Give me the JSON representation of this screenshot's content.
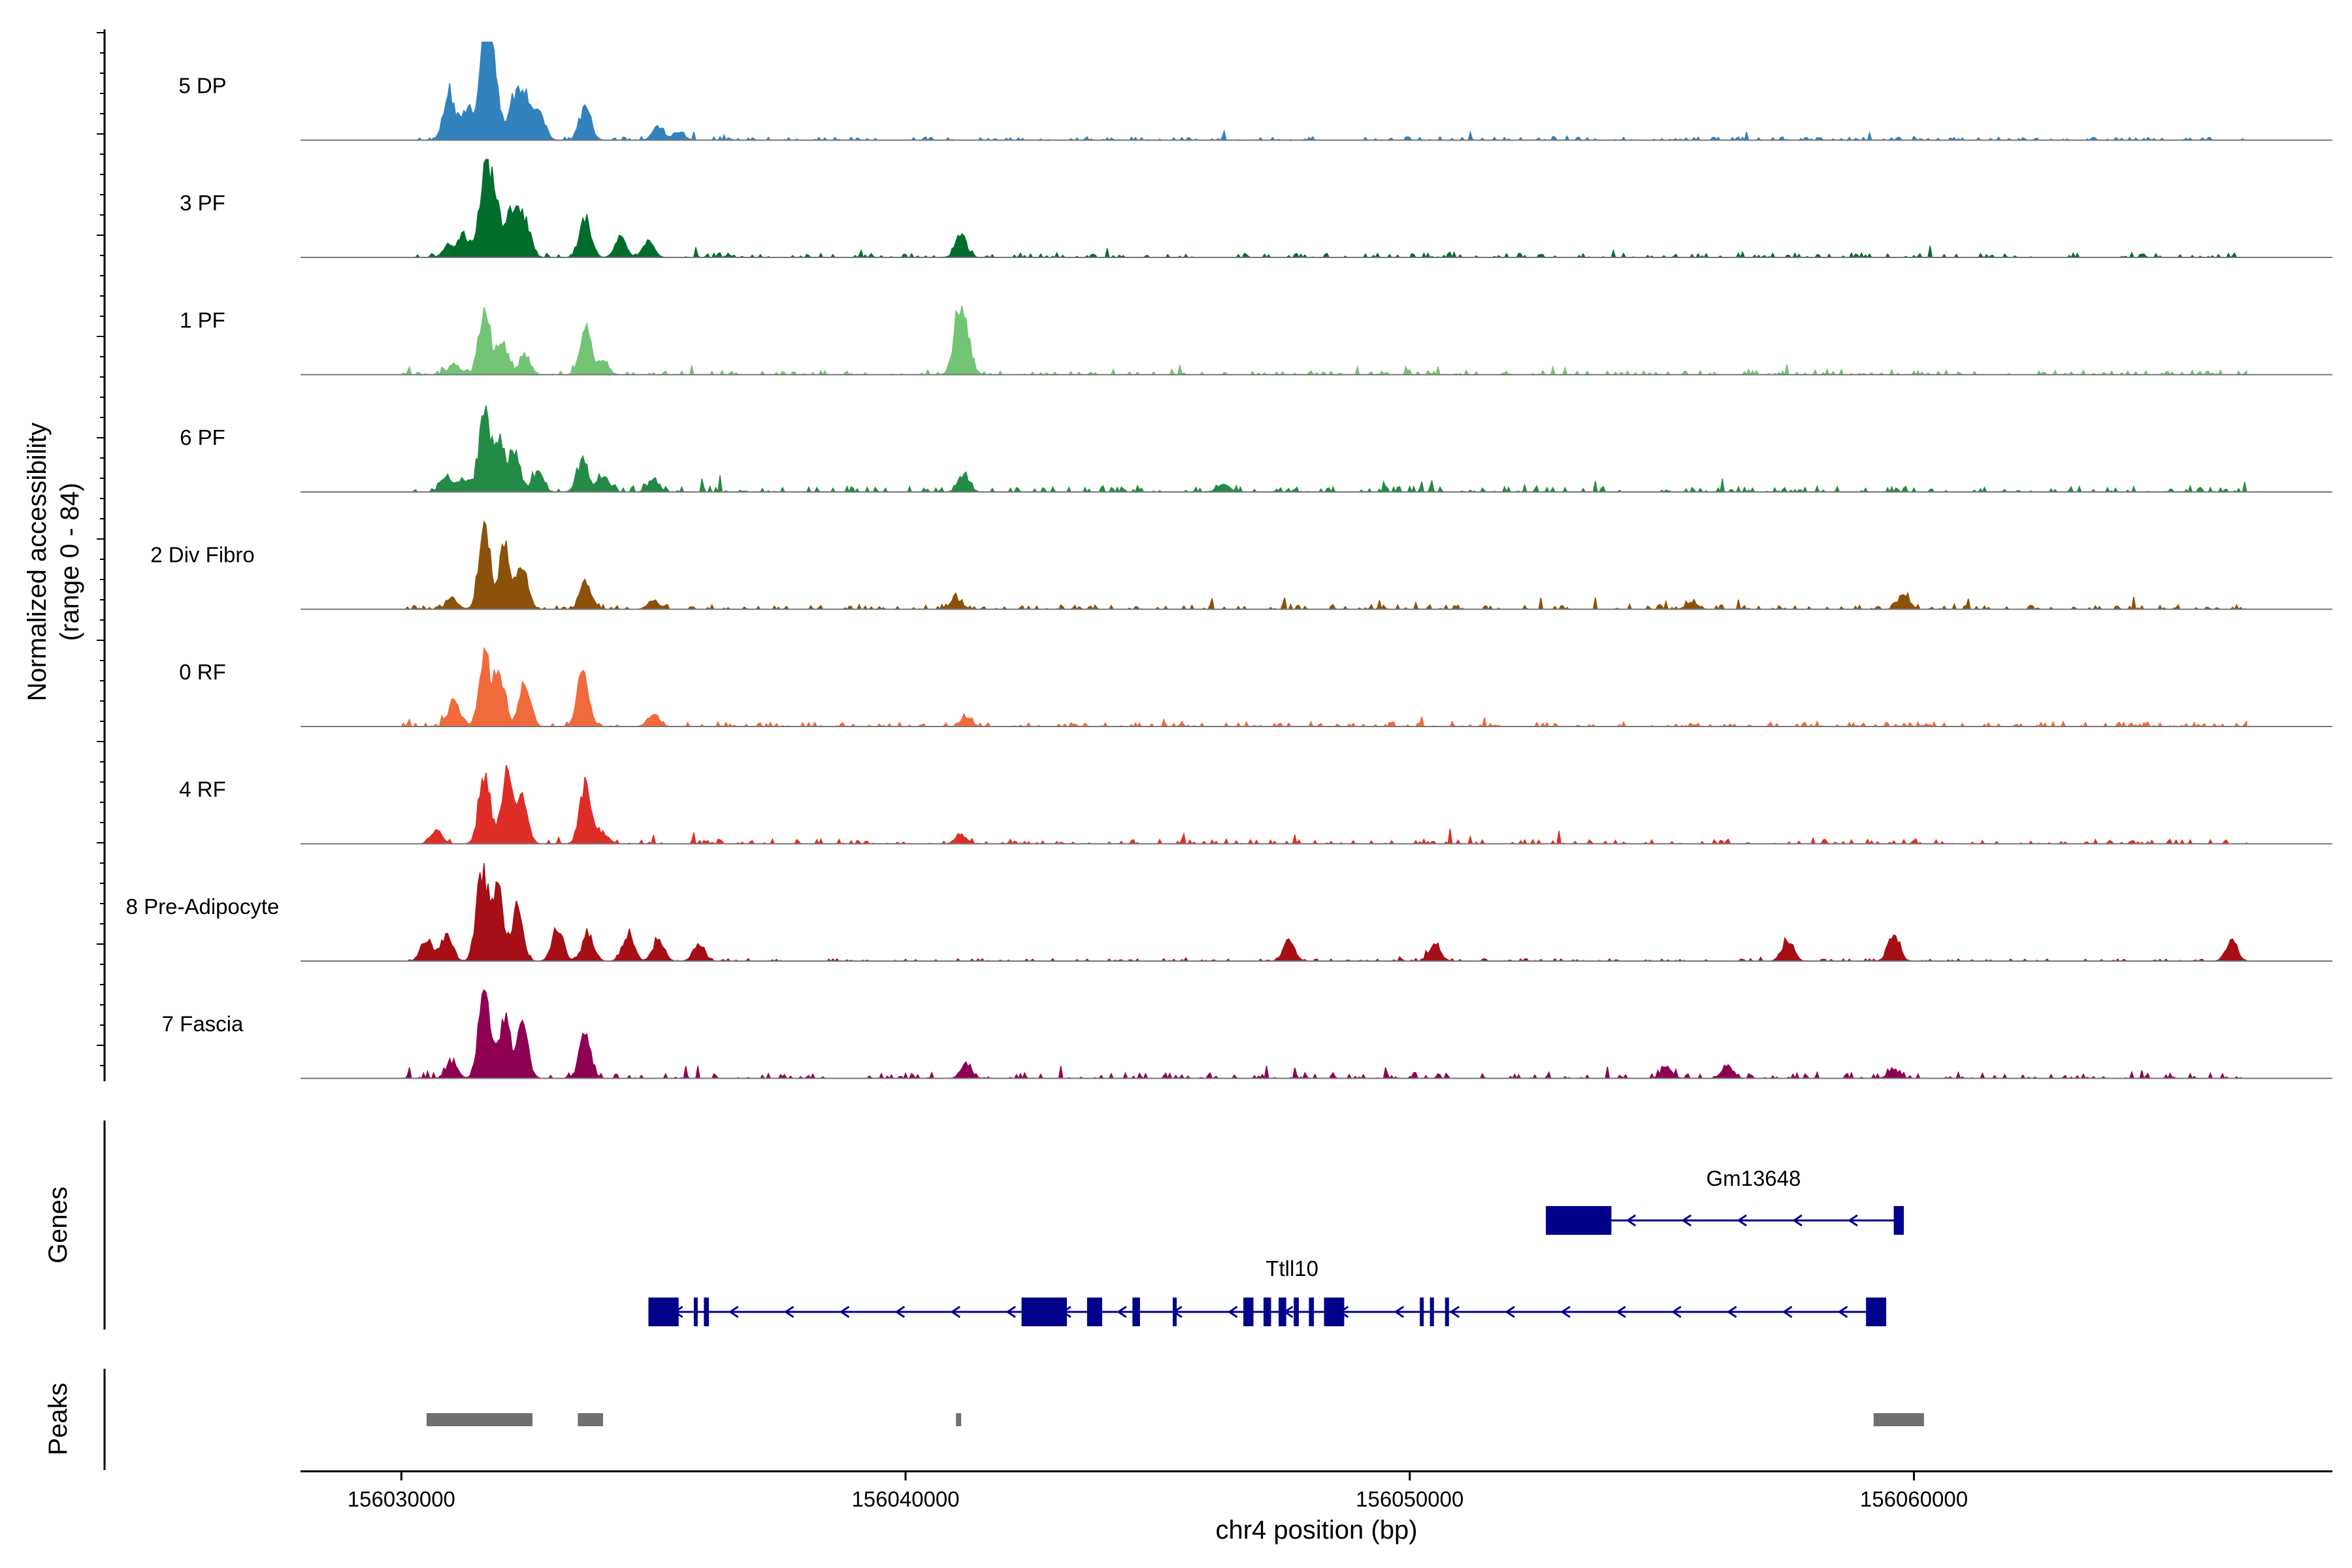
{
  "chart_data": {
    "type": "area",
    "title": "",
    "ylabel_line1": "Normalized accessibility",
    "ylabel_line2": "(range 0 - 84)",
    "xlabel": "chr4 position (bp)",
    "xlim": [
      156028000,
      156068300
    ],
    "ylim": [
      0,
      84
    ],
    "x_ticks": [
      {
        "value": 156030000,
        "label": "156030000"
      },
      {
        "value": 156040000,
        "label": "156040000"
      },
      {
        "value": 156050000,
        "label": "156050000"
      },
      {
        "value": 156060000,
        "label": "156060000"
      }
    ],
    "series": [
      {
        "name": "5 DP",
        "color": "#3182bd",
        "peaks": [
          [
            156030950,
            45
          ],
          [
            156031300,
            30
          ],
          [
            156031650,
            84
          ],
          [
            156031820,
            70
          ],
          [
            156032250,
            40
          ],
          [
            156032480,
            35
          ],
          [
            156032750,
            22
          ],
          [
            156033650,
            30
          ],
          [
            156035100,
            12
          ],
          [
            156035500,
            8
          ]
        ],
        "noise": 3
      },
      {
        "name": "3 PF",
        "color": "#006d2c",
        "peaks": [
          [
            156030950,
            12
          ],
          [
            156031250,
            20
          ],
          [
            156031650,
            70
          ],
          [
            156031850,
            55
          ],
          [
            156032200,
            45
          ],
          [
            156032450,
            35
          ],
          [
            156033650,
            35
          ],
          [
            156034350,
            18
          ],
          [
            156034900,
            14
          ],
          [
            156041100,
            20
          ]
        ],
        "noise": 4
      },
      {
        "name": "1 PF",
        "color": "#74c476",
        "peaks": [
          [
            156031050,
            10
          ],
          [
            156031650,
            60
          ],
          [
            156032000,
            30
          ],
          [
            156032450,
            18
          ],
          [
            156033650,
            45
          ],
          [
            156034000,
            12
          ],
          [
            156041050,
            45
          ],
          [
            156041200,
            30
          ]
        ],
        "noise": 4
      },
      {
        "name": "6 PF",
        "color": "#238b45",
        "peaks": [
          [
            156030900,
            15
          ],
          [
            156031250,
            12
          ],
          [
            156031650,
            70
          ],
          [
            156031950,
            45
          ],
          [
            156032250,
            35
          ],
          [
            156032700,
            18
          ],
          [
            156033600,
            28
          ],
          [
            156034000,
            14
          ],
          [
            156035000,
            10
          ],
          [
            156041150,
            15
          ],
          [
            156046300,
            8
          ]
        ],
        "noise": 5
      },
      {
        "name": "2 Div Fibro",
        "color": "#8c510a",
        "peaks": [
          [
            156031000,
            10
          ],
          [
            156031650,
            75
          ],
          [
            156032050,
            60
          ],
          [
            156032400,
            38
          ],
          [
            156033650,
            22
          ],
          [
            156035000,
            8
          ],
          [
            156041000,
            10
          ],
          [
            156055600,
            6
          ],
          [
            156059800,
            14
          ]
        ],
        "noise": 4
      },
      {
        "name": "0 RF",
        "color": "#f16a3b",
        "peaks": [
          [
            156031050,
            25
          ],
          [
            156031650,
            65
          ],
          [
            156031950,
            45
          ],
          [
            156032450,
            40
          ],
          [
            156033600,
            50
          ],
          [
            156035000,
            12
          ],
          [
            156041200,
            8
          ]
        ],
        "noise": 4
      },
      {
        "name": "4 RF",
        "color": "#de2d26",
        "peaks": [
          [
            156030700,
            12
          ],
          [
            156031650,
            65
          ],
          [
            156032100,
            70
          ],
          [
            156032400,
            40
          ],
          [
            156033650,
            55
          ],
          [
            156034000,
            10
          ],
          [
            156041100,
            8
          ]
        ],
        "noise": 4
      },
      {
        "name": "8 Pre-Adipocyte",
        "color": "#a50f15",
        "peaks": [
          [
            156030500,
            20
          ],
          [
            156030900,
            25
          ],
          [
            156031600,
            84
          ],
          [
            156031900,
            65
          ],
          [
            156032300,
            50
          ],
          [
            156033100,
            30
          ],
          [
            156033700,
            25
          ],
          [
            156034500,
            25
          ],
          [
            156035100,
            20
          ],
          [
            156035900,
            15
          ],
          [
            156047600,
            18
          ],
          [
            156050500,
            14
          ],
          [
            156057500,
            20
          ],
          [
            156059600,
            25
          ],
          [
            156066300,
            18
          ]
        ],
        "noise": 2
      },
      {
        "name": "7 Fascia",
        "color": "#8e0152",
        "peaks": [
          [
            156031000,
            15
          ],
          [
            156031650,
            84
          ],
          [
            156032050,
            55
          ],
          [
            156032400,
            50
          ],
          [
            156033650,
            40
          ],
          [
            156041200,
            12
          ],
          [
            156055100,
            10
          ],
          [
            156056300,
            12
          ],
          [
            156059600,
            8
          ]
        ],
        "noise": 5
      }
    ],
    "genes": [
      {
        "name": "Gm13648",
        "start": 156052700,
        "end": 156059800,
        "strand": "-",
        "exons": [
          [
            156052700,
            156054000
          ],
          [
            156059600,
            156059800
          ]
        ]
      },
      {
        "name": "Ttll10",
        "start": 156034900,
        "end": 156059450,
        "strand": "-",
        "exons": [
          [
            156034900,
            156035500
          ],
          [
            156035800,
            156035870
          ],
          [
            156036000,
            156036100
          ],
          [
            156042300,
            156043200
          ],
          [
            156043600,
            156043900
          ],
          [
            156044500,
            156044650
          ],
          [
            156045300,
            156045360
          ],
          [
            156046700,
            156046900
          ],
          [
            156047100,
            156047250
          ],
          [
            156047400,
            156047550
          ],
          [
            156047700,
            156047800
          ],
          [
            156048000,
            156048100
          ],
          [
            156048300,
            156048700
          ],
          [
            156050200,
            156050260
          ],
          [
            156050400,
            156050480
          ],
          [
            156050700,
            156050760
          ],
          [
            156059050,
            156059450
          ]
        ]
      }
    ],
    "peaks_track": [
      [
        156030500,
        156032600
      ],
      [
        156033500,
        156034000
      ],
      [
        156041000,
        156041100
      ],
      [
        156059200,
        156060200
      ]
    ],
    "genes_label": "Genes",
    "peaks_label": "Peaks"
  }
}
